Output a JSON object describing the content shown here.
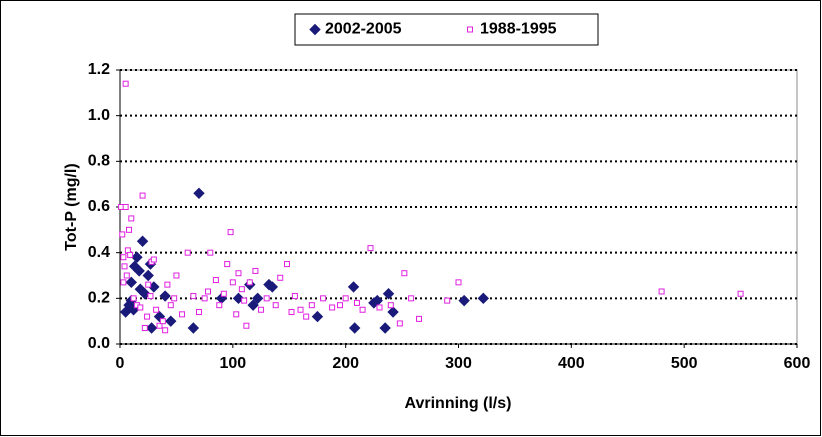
{
  "chart_data": {
    "type": "scatter",
    "x_label": "Avrinning (l/s)",
    "y_label": "Tot-P (mg/l)",
    "xlim": [
      0,
      600
    ],
    "xticks": [
      0,
      100,
      200,
      300,
      400,
      500,
      600
    ],
    "ylim": [
      0,
      1.2
    ],
    "yticks": [
      {
        "value": 0,
        "label": "0.0"
      },
      0.2,
      0.4,
      0.6,
      0.8,
      {
        "value": 1,
        "label": "1.0"
      },
      1.2
    ],
    "grid": true,
    "legend": "top",
    "series": [
      {
        "name": "2002-2005",
        "color": "#1a1a7a",
        "marker": "diamond",
        "x": [
          5,
          8,
          10,
          12,
          10,
          13,
          15,
          18,
          17,
          20,
          22,
          25,
          27,
          28,
          30,
          35,
          40,
          45,
          65,
          70,
          90,
          105,
          115,
          118,
          122,
          132,
          135,
          175,
          207,
          208,
          225,
          228,
          235,
          238,
          242,
          305,
          322
        ],
        "values": [
          0.14,
          0.17,
          0.19,
          0.15,
          0.27,
          0.34,
          0.38,
          0.24,
          0.32,
          0.45,
          0.22,
          0.3,
          0.35,
          0.07,
          0.25,
          0.12,
          0.21,
          0.1,
          0.07,
          0.66,
          0.2,
          0.2,
          0.26,
          0.17,
          0.2,
          0.26,
          0.25,
          0.12,
          0.25,
          0.07,
          0.18,
          0.19,
          0.07,
          0.22,
          0.14,
          0.19,
          0.2
        ]
      },
      {
        "name": "1988-1995",
        "color": "#e020e0",
        "marker": "square",
        "x": [
          1,
          2,
          3,
          4,
          5,
          6,
          7,
          8,
          9,
          5,
          10,
          12,
          3,
          15,
          18,
          20,
          22,
          24,
          25,
          27,
          28,
          30,
          32,
          35,
          38,
          40,
          42,
          45,
          48,
          50,
          55,
          60,
          65,
          70,
          75,
          78,
          80,
          85,
          88,
          92,
          95,
          98,
          100,
          103,
          105,
          108,
          110,
          112,
          115,
          120,
          125,
          130,
          138,
          142,
          148,
          152,
          155,
          160,
          165,
          170,
          180,
          188,
          195,
          200,
          210,
          215,
          222,
          230,
          240,
          248,
          252,
          258,
          265,
          290,
          300,
          480,
          550
        ],
        "values": [
          0.6,
          0.48,
          0.38,
          0.34,
          0.6,
          0.3,
          0.41,
          0.5,
          0.39,
          1.14,
          0.55,
          0.2,
          0.27,
          0.17,
          0.16,
          0.65,
          0.07,
          0.12,
          0.26,
          0.21,
          0.36,
          0.37,
          0.15,
          0.08,
          0.1,
          0.06,
          0.26,
          0.17,
          0.2,
          0.3,
          0.13,
          0.4,
          0.21,
          0.14,
          0.2,
          0.23,
          0.4,
          0.28,
          0.17,
          0.22,
          0.35,
          0.49,
          0.27,
          0.13,
          0.31,
          0.24,
          0.19,
          0.08,
          0.27,
          0.32,
          0.15,
          0.2,
          0.17,
          0.29,
          0.35,
          0.14,
          0.21,
          0.15,
          0.12,
          0.17,
          0.2,
          0.16,
          0.17,
          0.2,
          0.18,
          0.15,
          0.42,
          0.16,
          0.17,
          0.09,
          0.31,
          0.2,
          0.11,
          0.19,
          0.27,
          0.23,
          0.22
        ]
      }
    ]
  }
}
